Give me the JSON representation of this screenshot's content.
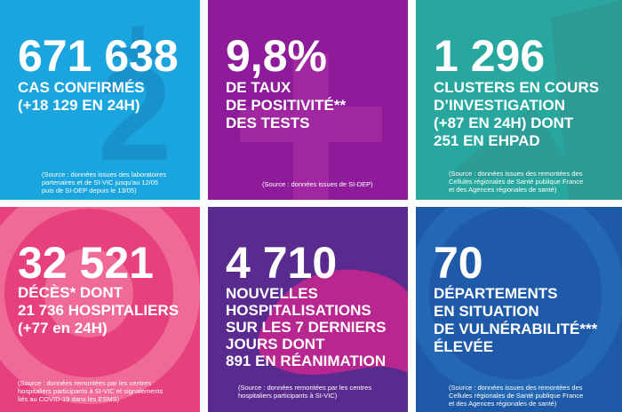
{
  "tiles": [
    {
      "number": "671 638",
      "lines": [
        "CAS CONFIRMÉS",
        "(+18 129 EN 24H)"
      ],
      "source": [
        "(Source : données issues des laboratoires",
        "partenaires et de SI-VIC jusqu'au 12/05",
        "puis de SI-DEP depuis le 13/05)"
      ]
    },
    {
      "number": "9,8%",
      "lines": [
        "DE TAUX",
        "DE POSITIVITÉ**",
        "DES TESTS"
      ],
      "source": [
        "(Source : données issues de SI-DEP)"
      ]
    },
    {
      "number": "1 296",
      "lines": [
        "CLUSTERS EN COURS",
        "D’INVESTIGATION",
        "(+87 EN 24H) DONT",
        "251 EN EHPAD"
      ],
      "source": [
        "(Source : données issues des remontées des",
        "Cellules régionales de Santé publique France",
        "et des Agences régionales de santé)"
      ]
    },
    {
      "number": "32 521",
      "lines": [
        "DÉCÈS* DONT",
        "21 736 HOSPITALIERS",
        "(+77 en 24H)"
      ],
      "source": [
        "(Source : données remontées par les centres",
        "hospitaliers participants à SI-VIC et signalements",
        "liés au COVID-19 dans les ESMS)"
      ]
    },
    {
      "number": "4 710",
      "lines": [
        "NOUVELLES",
        "HOSPITALISATIONS",
        "SUR LES 7 DERNIERS",
        "JOURS DONT",
        "891 EN RÉANIMATION"
      ],
      "source": [
        "(Source : données remontées par les centres",
        "hospitaliers participants à SI-VIC)"
      ]
    },
    {
      "number": "70",
      "lines": [
        "DÉPARTEMENTS",
        "EN SITUATION",
        "DE VULNÉRABILITÉ***",
        "ÉLEVÉE"
      ],
      "source": [
        "(Source : données issues des remontées des",
        "Cellules régionales de Santé publique France",
        "et des Agences régionales de santé)"
      ]
    }
  ]
}
